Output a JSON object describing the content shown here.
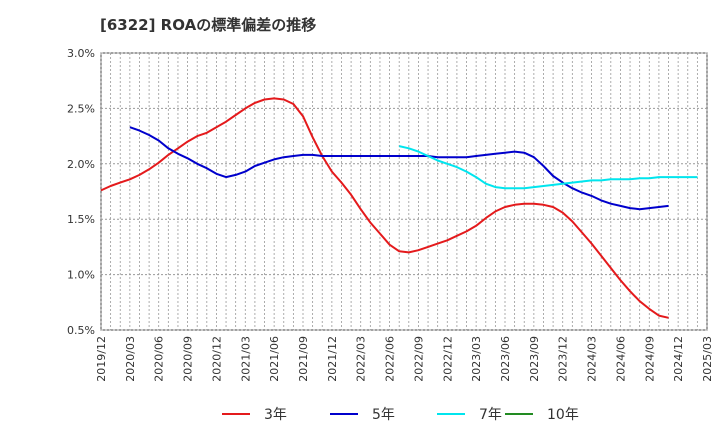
{
  "chart_data": {
    "type": "line",
    "title": "[6322]  ROAの標準偏差の推移",
    "xlabel": "",
    "ylabel": "",
    "ylim": [
      0.5,
      3.0
    ],
    "yticks": [
      "0.5%",
      "1.0%",
      "1.5%",
      "2.0%",
      "2.5%",
      "3.0%"
    ],
    "yvalues": [
      0.5,
      1.0,
      1.5,
      2.0,
      2.5,
      3.0
    ],
    "xticks": [
      "2019/12",
      "2020/03",
      "2020/06",
      "2020/09",
      "2020/12",
      "2021/03",
      "2021/06",
      "2021/09",
      "2021/12",
      "2022/03",
      "2022/06",
      "2022/09",
      "2022/12",
      "2023/03",
      "2023/06",
      "2023/09",
      "2023/12",
      "2024/03",
      "2024/06",
      "2024/09",
      "2024/12",
      "2025/03"
    ],
    "grid": true,
    "legend_position": "bottom",
    "series": [
      {
        "name": "3年",
        "color": "#e41a1c",
        "values": [
          [
            0,
            1.76
          ],
          [
            1,
            1.8
          ],
          [
            2,
            1.83
          ],
          [
            3,
            1.86
          ],
          [
            4,
            1.9
          ],
          [
            5,
            1.95
          ],
          [
            6,
            2.01
          ],
          [
            7,
            2.08
          ],
          [
            8,
            2.14
          ],
          [
            9,
            2.2
          ],
          [
            10,
            2.25
          ],
          [
            11,
            2.28
          ],
          [
            12,
            2.33
          ],
          [
            13,
            2.38
          ],
          [
            14,
            2.44
          ],
          [
            15,
            2.5
          ],
          [
            16,
            2.55
          ],
          [
            17,
            2.58
          ],
          [
            18,
            2.59
          ],
          [
            19,
            2.58
          ],
          [
            20,
            2.54
          ],
          [
            21,
            2.43
          ],
          [
            22,
            2.24
          ],
          [
            23,
            2.07
          ],
          [
            24,
            1.93
          ],
          [
            25,
            1.83
          ],
          [
            26,
            1.72
          ],
          [
            27,
            1.59
          ],
          [
            28,
            1.47
          ],
          [
            29,
            1.37
          ],
          [
            30,
            1.27
          ],
          [
            31,
            1.21
          ],
          [
            32,
            1.2
          ],
          [
            33,
            1.22
          ],
          [
            34,
            1.25
          ],
          [
            35,
            1.28
          ],
          [
            36,
            1.31
          ],
          [
            37,
            1.35
          ],
          [
            38,
            1.39
          ],
          [
            39,
            1.44
          ],
          [
            40,
            1.51
          ],
          [
            41,
            1.57
          ],
          [
            42,
            1.61
          ],
          [
            43,
            1.63
          ],
          [
            44,
            1.64
          ],
          [
            45,
            1.64
          ],
          [
            46,
            1.63
          ],
          [
            47,
            1.61
          ],
          [
            48,
            1.56
          ],
          [
            49,
            1.48
          ],
          [
            50,
            1.38
          ],
          [
            51,
            1.28
          ],
          [
            52,
            1.17
          ],
          [
            53,
            1.06
          ],
          [
            54,
            0.95
          ],
          [
            55,
            0.85
          ],
          [
            56,
            0.76
          ],
          [
            57,
            0.69
          ],
          [
            58,
            0.63
          ],
          [
            59,
            0.61
          ]
        ]
      },
      {
        "name": "5年",
        "color": "#0000cc",
        "values": [
          [
            3,
            2.33
          ],
          [
            4,
            2.3
          ],
          [
            5,
            2.26
          ],
          [
            6,
            2.21
          ],
          [
            7,
            2.14
          ],
          [
            8,
            2.09
          ],
          [
            9,
            2.05
          ],
          [
            10,
            2.0
          ],
          [
            11,
            1.96
          ],
          [
            12,
            1.91
          ],
          [
            13,
            1.88
          ],
          [
            14,
            1.9
          ],
          [
            15,
            1.93
          ],
          [
            16,
            1.98
          ],
          [
            17,
            2.01
          ],
          [
            18,
            2.04
          ],
          [
            19,
            2.06
          ],
          [
            20,
            2.07
          ],
          [
            21,
            2.08
          ],
          [
            22,
            2.08
          ],
          [
            23,
            2.07
          ],
          [
            24,
            2.07
          ],
          [
            25,
            2.07
          ],
          [
            26,
            2.07
          ],
          [
            27,
            2.07
          ],
          [
            28,
            2.07
          ],
          [
            29,
            2.07
          ],
          [
            30,
            2.07
          ],
          [
            31,
            2.07
          ],
          [
            32,
            2.07
          ],
          [
            33,
            2.07
          ],
          [
            34,
            2.07
          ],
          [
            35,
            2.06
          ],
          [
            36,
            2.06
          ],
          [
            37,
            2.06
          ],
          [
            38,
            2.06
          ],
          [
            39,
            2.07
          ],
          [
            40,
            2.08
          ],
          [
            41,
            2.09
          ],
          [
            42,
            2.1
          ],
          [
            43,
            2.11
          ],
          [
            44,
            2.1
          ],
          [
            45,
            2.06
          ],
          [
            46,
            1.98
          ],
          [
            47,
            1.89
          ],
          [
            48,
            1.83
          ],
          [
            49,
            1.78
          ],
          [
            50,
            1.74
          ],
          [
            51,
            1.71
          ],
          [
            52,
            1.67
          ],
          [
            53,
            1.64
          ],
          [
            54,
            1.62
          ],
          [
            55,
            1.6
          ],
          [
            56,
            1.59
          ],
          [
            57,
            1.6
          ],
          [
            58,
            1.61
          ],
          [
            59,
            1.62
          ]
        ]
      },
      {
        "name": "7年",
        "color": "#00e5ee",
        "values": [
          [
            31,
            2.16
          ],
          [
            32,
            2.14
          ],
          [
            33,
            2.11
          ],
          [
            34,
            2.07
          ],
          [
            35,
            2.03
          ],
          [
            36,
            2.0
          ],
          [
            37,
            1.97
          ],
          [
            38,
            1.93
          ],
          [
            39,
            1.88
          ],
          [
            40,
            1.82
          ],
          [
            41,
            1.79
          ],
          [
            42,
            1.78
          ],
          [
            43,
            1.78
          ],
          [
            44,
            1.78
          ],
          [
            45,
            1.79
          ],
          [
            46,
            1.8
          ],
          [
            47,
            1.81
          ],
          [
            48,
            1.82
          ],
          [
            49,
            1.83
          ],
          [
            50,
            1.84
          ],
          [
            51,
            1.85
          ],
          [
            52,
            1.85
          ],
          [
            53,
            1.86
          ],
          [
            54,
            1.86
          ],
          [
            55,
            1.86
          ],
          [
            56,
            1.87
          ],
          [
            57,
            1.87
          ],
          [
            58,
            1.88
          ],
          [
            59,
            1.88
          ],
          [
            60,
            1.88
          ],
          [
            61,
            1.88
          ],
          [
            62,
            1.88
          ]
        ]
      },
      {
        "name": "10年",
        "color": "#228b22",
        "values": []
      }
    ]
  }
}
